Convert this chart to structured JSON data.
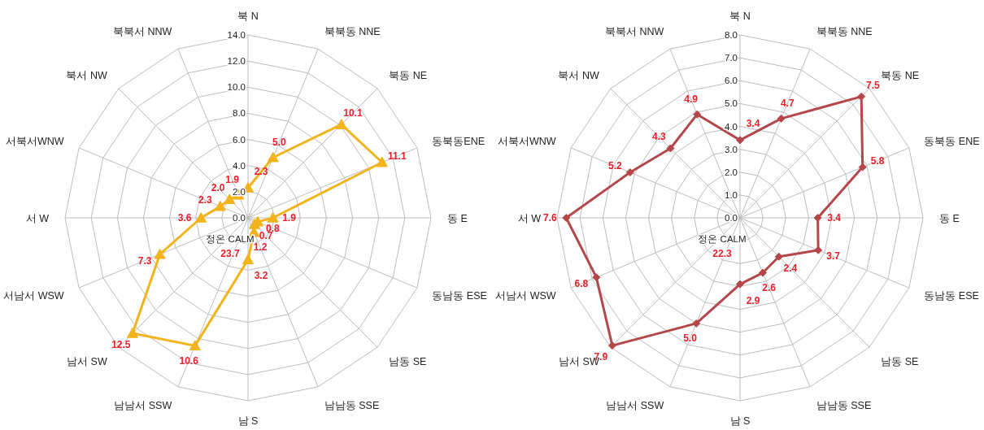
{
  "chart_data": [
    {
      "type": "radar",
      "categories": [
        "북 N",
        "북북동 NNE",
        "북동 NE",
        "동북동ENE",
        "동 E",
        "동남동 ESE",
        "남동 SE",
        "남남동 SSE",
        "남 S",
        "남남서 SSW",
        "남서 SW",
        "서남서 WSW",
        "서 W",
        "서북서WNW",
        "북서 NW",
        "북북서 NNW"
      ],
      "series": [
        {
          "color": "#f2b31b",
          "values": [
            2.3,
            5.0,
            10.1,
            11.1,
            1.9,
            0.8,
            0.7,
            1.2,
            3.2,
            10.6,
            12.5,
            7.3,
            3.6,
            2.3,
            2.0,
            1.9
          ]
        }
      ],
      "ylim": [
        0,
        14
      ],
      "yticks": [
        {
          "value": 0,
          "label": "0.0"
        },
        {
          "value": 2,
          "label": "2.0"
        },
        {
          "value": 4,
          "label": "4.0"
        },
        {
          "value": 6,
          "label": "6.0"
        },
        {
          "value": 8,
          "label": "8.0"
        },
        {
          "value": 10,
          "label": "10.0"
        },
        {
          "value": 12,
          "label": "12.0"
        },
        {
          "value": 14,
          "label": "14.0"
        }
      ],
      "value_labels": [
        "2.3",
        "5.0",
        "10.1",
        "11.1",
        "1.9",
        "0.8",
        "0.7",
        "1.2",
        "3.2",
        "10.6",
        "12.5",
        "7.3",
        "3.6",
        "2.3",
        "2.0",
        "1.9"
      ],
      "grid": true,
      "marker": "triangle",
      "annotations": [
        "정온 CALM",
        "23.7"
      ]
    },
    {
      "type": "radar",
      "categories": [
        "북 N",
        "북북동 NNE",
        "북동 NE",
        "동북동 ENE",
        "동 E",
        "동남동 ESE",
        "남동 SE",
        "남남동 SSE",
        "남 S",
        "남남서 SSW",
        "남서 SW",
        "서남서 WSW",
        "서 W",
        "서북서WNW",
        "북서 NW",
        "북북서 NNW"
      ],
      "series": [
        {
          "color": "#b5474b",
          "values": [
            3.4,
            4.7,
            7.5,
            5.8,
            3.4,
            3.7,
            2.4,
            2.6,
            2.9,
            5.0,
            7.9,
            6.8,
            7.6,
            5.2,
            4.3,
            4.9
          ]
        }
      ],
      "ylim": [
        0,
        8
      ],
      "yticks": [
        {
          "value": 0,
          "label": "0.0"
        },
        {
          "value": 1,
          "label": "1.0"
        },
        {
          "value": 2,
          "label": "2.0"
        },
        {
          "value": 3,
          "label": "3.0"
        },
        {
          "value": 4,
          "label": "4.0"
        },
        {
          "value": 5,
          "label": "5.0"
        },
        {
          "value": 6,
          "label": "6.0"
        },
        {
          "value": 7,
          "label": "7.0"
        },
        {
          "value": 8,
          "label": "8.0"
        }
      ],
      "value_labels": [
        "3.4",
        "4.7",
        "7.5",
        "5.8",
        "3.4",
        "3.7",
        "2.4",
        "2.6",
        "2.9",
        "5.0",
        "7.9",
        "6.8",
        "7.6",
        "5.2",
        "4.3",
        "4.9"
      ],
      "grid": true,
      "marker": "diamond",
      "annotations": [
        "정온 CALM",
        "22.3"
      ]
    }
  ]
}
